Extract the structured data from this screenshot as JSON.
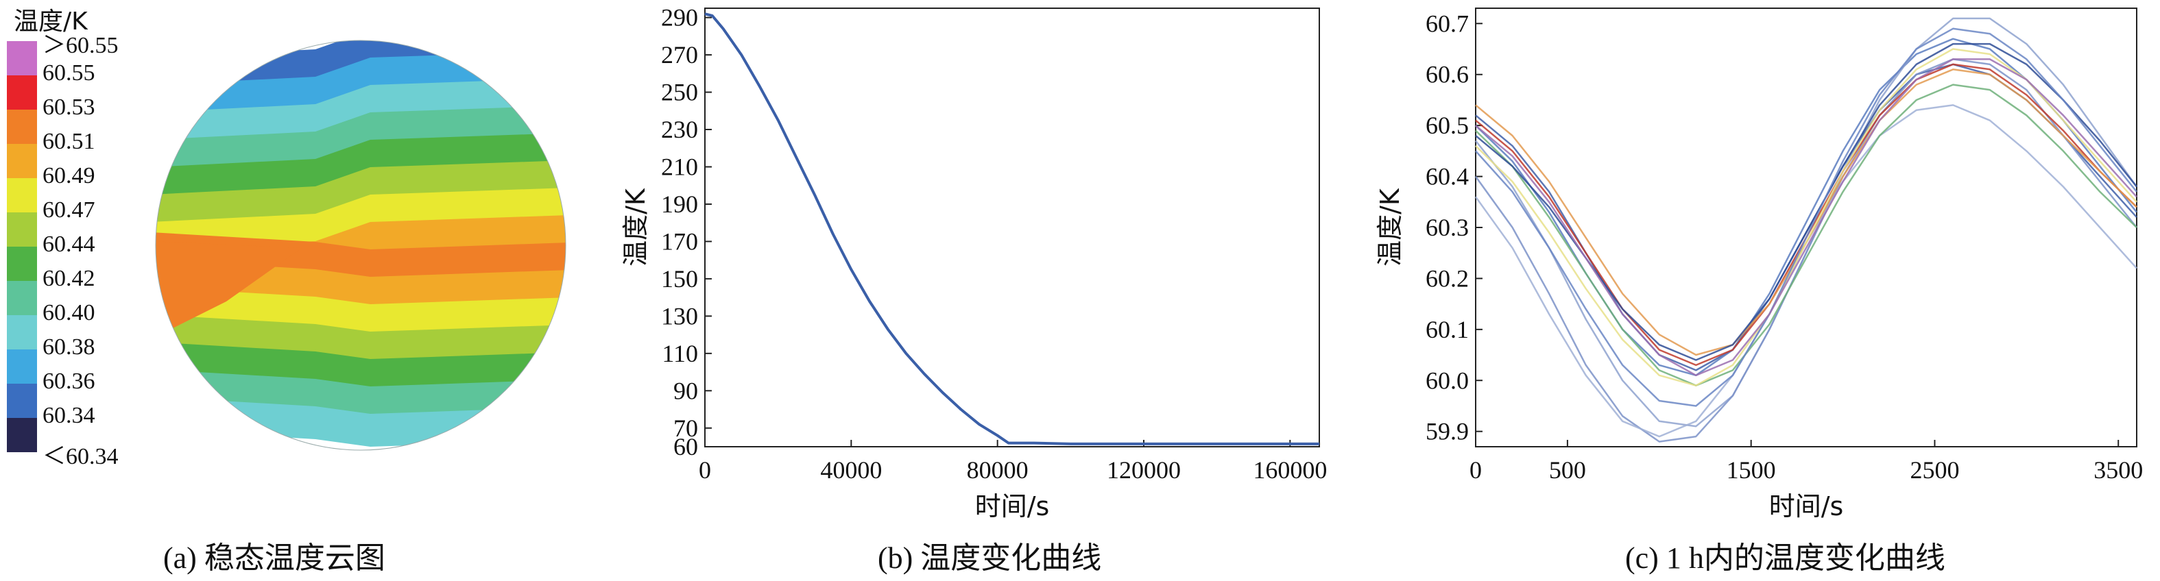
{
  "chart_data": [
    {
      "type": "heatmap",
      "panel": "a",
      "caption": "(a)  稳态温度云图",
      "legend": {
        "title": "温度/K",
        "labels": [
          "＞60.55",
          "60.55",
          "60.53",
          "60.51",
          "60.49",
          "60.47",
          "60.44",
          "60.42",
          "60.40",
          "60.38",
          "60.36",
          "60.34",
          "＜60.34"
        ],
        "colors": [
          "#c86fc8",
          "#e8232a",
          "#f07f27",
          "#f2a928",
          "#e8e830",
          "#a6cd3a",
          "#4fb245",
          "#5dc49a",
          "#6ecfd2",
          "#3fa9e0",
          "#3a6ec0",
          "#272650"
        ]
      },
      "bands_top_to_bottom": [
        "60.36",
        "60.38",
        "60.40",
        "60.42",
        "60.44",
        "60.47",
        "60.49",
        "60.51",
        "60.53",
        "60.51",
        "60.49",
        "60.47",
        "60.44",
        "60.42",
        "60.40"
      ]
    },
    {
      "type": "line",
      "panel": "b",
      "caption": "(b)  温度变化曲线",
      "xlabel": "时间/s",
      "ylabel": "温度/K",
      "xlim": [
        0,
        168000
      ],
      "ylim": [
        60,
        295
      ],
      "xticks": [
        0,
        40000,
        80000,
        120000,
        160000
      ],
      "yticks": [
        60,
        70,
        90,
        110,
        130,
        150,
        170,
        190,
        210,
        230,
        250,
        270,
        290
      ],
      "series": [
        {
          "color": "#3a5fa8",
          "x": [
            0,
            2000,
            5000,
            10000,
            15000,
            20000,
            25000,
            30000,
            35000,
            40000,
            45000,
            50000,
            55000,
            60000,
            65000,
            70000,
            75000,
            80000,
            83000,
            90000,
            100000,
            120000,
            140000,
            160000,
            168000
          ],
          "y": [
            292,
            291,
            284,
            270,
            253,
            235,
            215,
            195,
            174,
            155,
            138,
            123,
            110,
            99,
            89,
            80,
            72,
            66,
            62,
            62,
            61.5,
            61.5,
            61.5,
            61.5,
            61.5
          ]
        }
      ]
    },
    {
      "type": "line",
      "panel": "c",
      "caption": "(c)  1 h内的温度变化曲线",
      "xlabel": "时间/s",
      "ylabel": "温度/K",
      "xlim": [
        0,
        3600
      ],
      "ylim": [
        59.87,
        60.73
      ],
      "xticks": [
        0,
        500,
        1500,
        2500,
        3500
      ],
      "yticks": [
        59.9,
        60.0,
        60.1,
        60.2,
        60.3,
        60.4,
        60.5,
        60.6,
        60.7
      ],
      "x": [
        0,
        200,
        400,
        600,
        800,
        1000,
        1200,
        1400,
        1600,
        1800,
        2000,
        2200,
        2400,
        2600,
        2800,
        3000,
        3200,
        3400,
        3600
      ],
      "series": [
        {
          "color": "#3f5fa8",
          "y": [
            60.52,
            60.46,
            60.37,
            60.25,
            60.13,
            60.05,
            60.02,
            60.06,
            60.16,
            60.29,
            60.42,
            60.53,
            60.6,
            60.62,
            60.6,
            60.55,
            60.48,
            60.4,
            60.32
          ]
        },
        {
          "color": "#5a7cc0",
          "y": [
            60.5,
            60.43,
            60.33,
            60.21,
            60.1,
            60.03,
            60.01,
            60.06,
            60.17,
            60.31,
            60.45,
            60.57,
            60.64,
            60.67,
            60.65,
            60.59,
            60.51,
            60.42,
            60.33
          ]
        },
        {
          "color": "#8ea2cf",
          "y": [
            60.47,
            60.38,
            60.26,
            60.12,
            60.0,
            59.92,
            59.91,
            59.97,
            60.1,
            60.25,
            60.41,
            60.55,
            60.65,
            60.71,
            60.71,
            60.66,
            60.58,
            60.48,
            60.38
          ]
        },
        {
          "color": "#7b92c8",
          "y": [
            60.4,
            60.3,
            60.17,
            60.03,
            59.93,
            59.88,
            59.89,
            59.97,
            60.1,
            60.25,
            60.4,
            60.52,
            60.6,
            60.63,
            60.62,
            60.57,
            60.48,
            60.39,
            60.3
          ]
        },
        {
          "color": "#a0b0d6",
          "y": [
            60.36,
            60.26,
            60.13,
            60.01,
            59.92,
            59.89,
            59.92,
            60.01,
            60.13,
            60.27,
            60.39,
            60.48,
            60.53,
            60.54,
            60.51,
            60.45,
            60.38,
            60.3,
            60.22
          ]
        },
        {
          "color": "#c0392b",
          "y": [
            60.51,
            60.45,
            60.36,
            60.25,
            60.14,
            60.06,
            60.03,
            60.06,
            60.15,
            60.28,
            60.41,
            60.52,
            60.59,
            60.62,
            60.61,
            60.56,
            60.49,
            60.41,
            60.34
          ]
        },
        {
          "color": "#e39a50",
          "y": [
            60.54,
            60.48,
            60.39,
            60.28,
            60.17,
            60.09,
            60.05,
            60.07,
            60.15,
            60.27,
            60.4,
            60.51,
            60.58,
            60.61,
            60.6,
            60.55,
            60.48,
            60.41,
            60.34
          ]
        },
        {
          "color": "#6fb07a",
          "y": [
            60.49,
            60.42,
            60.32,
            60.21,
            60.1,
            60.02,
            59.99,
            60.02,
            60.11,
            60.24,
            60.37,
            60.48,
            60.55,
            60.58,
            60.57,
            60.52,
            60.45,
            60.37,
            60.3
          ]
        },
        {
          "color": "#e8e08a",
          "y": [
            60.46,
            60.39,
            60.29,
            60.18,
            60.08,
            60.01,
            59.99,
            60.03,
            60.13,
            60.27,
            60.41,
            60.53,
            60.61,
            60.65,
            60.64,
            60.59,
            60.51,
            60.43,
            60.35
          ]
        },
        {
          "color": "#2f4e96",
          "y": [
            60.48,
            60.42,
            60.34,
            60.24,
            60.14,
            60.07,
            60.04,
            60.07,
            60.16,
            60.29,
            60.42,
            60.54,
            60.62,
            60.66,
            60.66,
            60.62,
            60.55,
            60.47,
            60.38
          ]
        },
        {
          "color": "#6a86c4",
          "y": [
            60.45,
            60.37,
            60.26,
            60.14,
            60.03,
            59.96,
            59.95,
            60.01,
            60.13,
            60.28,
            60.43,
            60.56,
            60.65,
            60.69,
            60.68,
            60.63,
            60.55,
            60.46,
            60.37
          ]
        },
        {
          "color": "#9b6fb0",
          "y": [
            60.5,
            60.44,
            60.35,
            60.24,
            60.13,
            60.05,
            60.01,
            60.04,
            60.13,
            60.26,
            60.39,
            60.51,
            60.59,
            60.63,
            60.63,
            60.59,
            60.52,
            60.44,
            60.36
          ]
        }
      ]
    }
  ]
}
